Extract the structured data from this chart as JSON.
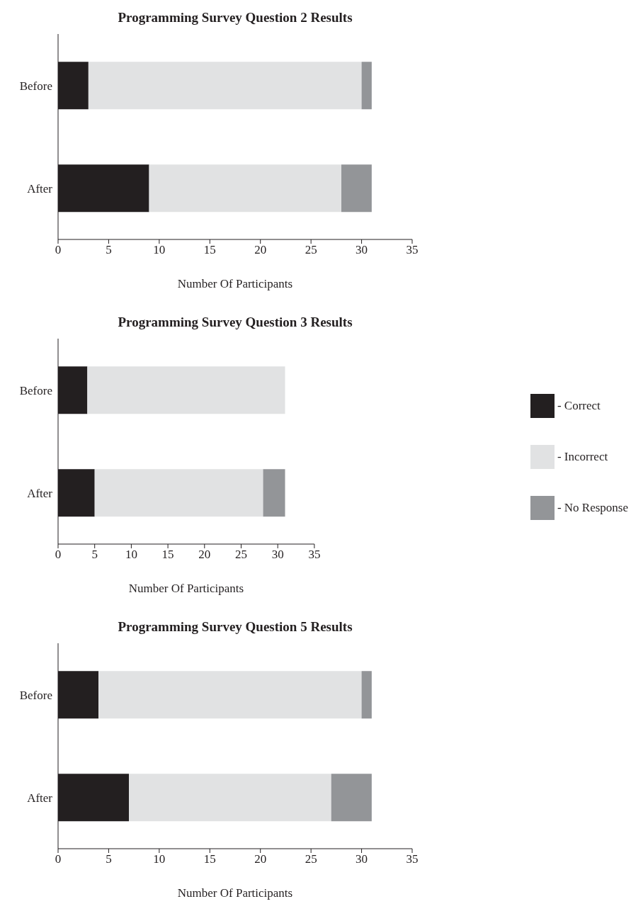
{
  "chart_data": [
    {
      "type": "bar",
      "title": "Programming Survey Question 2 Results",
      "xlabel": "Number Of Participants",
      "categories": [
        "Before",
        "After"
      ],
      "orientation": "horizontal",
      "stacked": true,
      "xlim": [
        0,
        35
      ],
      "xticks": [
        0,
        5,
        10,
        15,
        20,
        25,
        30,
        35
      ],
      "grid": false,
      "legend": false,
      "series": [
        {
          "color": "#231f20",
          "values": [
            3,
            9
          ]
        },
        {
          "color": "#e1e2e3",
          "values": [
            27,
            19
          ]
        },
        {
          "color": "#939598",
          "values": [
            1,
            3
          ]
        }
      ]
    },
    {
      "type": "bar",
      "title": "Programming Survey Question 3 Results",
      "xlabel": "Number Of Participants",
      "categories": [
        "Before",
        "After"
      ],
      "orientation": "horizontal",
      "stacked": true,
      "xlim": [
        0,
        35
      ],
      "xticks": [
        0,
        5,
        10,
        15,
        20,
        25,
        30,
        35
      ],
      "grid": false,
      "legend": "right",
      "series": [
        {
          "name": "- Correct",
          "color": "#231f20",
          "values": [
            4,
            5
          ]
        },
        {
          "name": "- Incorrect",
          "color": "#e1e2e3",
          "values": [
            27,
            23
          ]
        },
        {
          "name": "- No Response",
          "color": "#939598",
          "values": [
            0,
            3
          ]
        }
      ]
    },
    {
      "type": "bar",
      "title": "Programming Survey Question 5 Results",
      "xlabel": "Number Of Participants",
      "categories": [
        "Before",
        "After"
      ],
      "orientation": "horizontal",
      "stacked": true,
      "xlim": [
        0,
        35
      ],
      "xticks": [
        0,
        5,
        10,
        15,
        20,
        25,
        30,
        35
      ],
      "grid": false,
      "legend": false,
      "series": [
        {
          "color": "#231f20",
          "values": [
            4,
            7
          ]
        },
        {
          "color": "#e1e2e3",
          "values": [
            26,
            20
          ]
        },
        {
          "color": "#939598",
          "values": [
            1,
            4
          ]
        }
      ]
    }
  ]
}
